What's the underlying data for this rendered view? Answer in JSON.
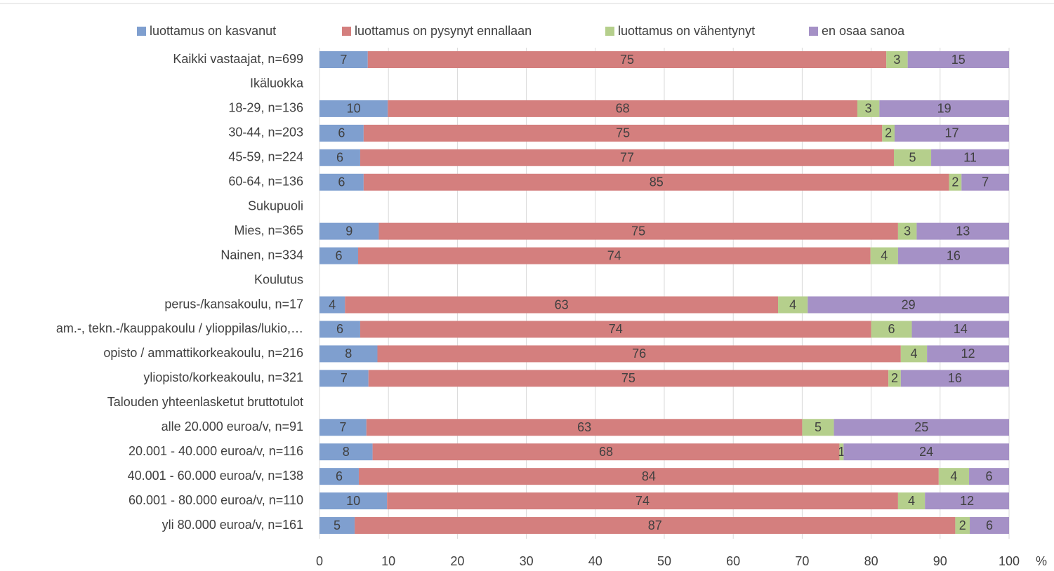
{
  "chart_data": {
    "type": "stacked-barh",
    "categories": [
      "Kaikki vastaajat, n=699",
      "Ikäluokka",
      "18-29, n=136",
      "30-44, n=203",
      "45-59, n=224",
      "60-64, n=136",
      "Sukupuoli",
      "Mies, n=365",
      "Nainen, n=334",
      "Koulutus",
      "perus-/kansakoulu, n=17",
      "am.-, tekn.-/kauppakoulu / ylioppilas/lukio,…",
      "opisto / ammattikorkeakoulu, n=216",
      "yliopisto/korkeakoulu, n=321",
      "Talouden yhteenlasketut bruttotulot",
      "alle 20.000 euroa/v, n=91",
      "20.001 - 40.000 euroa/v, n=116",
      "40.001 - 60.000 euroa/v, n=138",
      "60.001 - 80.000 euroa/v, n=110",
      "yli 80.000 euroa/v, n=161"
    ],
    "series": [
      {
        "name": "luottamus on kasvanut",
        "color": "#7f9fcf",
        "values": [
          7.0,
          null,
          9.9,
          6.4,
          5.9,
          6.4,
          null,
          8.6,
          5.6,
          null,
          3.7,
          5.9,
          8.4,
          7.1,
          null,
          6.8,
          7.7,
          5.7,
          9.8,
          5.1
        ],
        "value_labels": [
          "7",
          null,
          "10",
          "6",
          "6",
          "6",
          null,
          "9",
          "6",
          null,
          "4",
          "6",
          "8",
          "7",
          null,
          "7",
          "8",
          "6",
          "10",
          "5"
        ]
      },
      {
        "name": "luottamus on pysynyt ennallaan",
        "color": "#d47f7e",
        "values": [
          75.2,
          null,
          68.1,
          75.2,
          77.4,
          84.9,
          null,
          75.3,
          74.3,
          null,
          62.8,
          74.1,
          75.9,
          75.4,
          null,
          63.2,
          67.7,
          84.1,
          74.1,
          87.1
        ],
        "value_labels": [
          "75",
          null,
          "68",
          "75",
          "77",
          "85",
          null,
          "75",
          "74",
          null,
          "63",
          "74",
          "76",
          "75",
          null,
          "63",
          "68",
          "84",
          "74",
          "87"
        ]
      },
      {
        "name": "luottamus on vähentynyt",
        "color": "#b5cf8c",
        "values": [
          3.1,
          null,
          3.2,
          1.8,
          5.4,
          1.8,
          null,
          2.7,
          4.0,
          null,
          4.3,
          5.9,
          3.8,
          1.8,
          null,
          4.6,
          0.6,
          4.4,
          3.9,
          2.1
        ],
        "value_labels": [
          "3",
          null,
          "3",
          "2",
          "5",
          "2",
          null,
          "3",
          "4",
          null,
          "4",
          "6",
          "4",
          "2",
          null,
          "5",
          "1",
          "4",
          "4",
          "2"
        ]
      },
      {
        "name": "en osaa sanoa",
        "color": "#a591c6",
        "values": [
          14.7,
          null,
          18.8,
          16.6,
          11.3,
          6.9,
          null,
          13.4,
          16.1,
          null,
          29.2,
          14.1,
          11.9,
          15.7,
          null,
          25.4,
          24.0,
          5.8,
          12.2,
          5.7
        ],
        "value_labels": [
          "15",
          null,
          "19",
          "17",
          "11",
          "7",
          null,
          "13",
          "16",
          null,
          "29",
          "14",
          "12",
          "16",
          null,
          "25",
          "24",
          "6",
          "12",
          "6"
        ]
      }
    ],
    "xlabel": "%",
    "xlim": [
      0,
      100
    ],
    "xticks": [
      0,
      10,
      20,
      30,
      40,
      50,
      60,
      70,
      80,
      90,
      100
    ],
    "grid": true
  }
}
